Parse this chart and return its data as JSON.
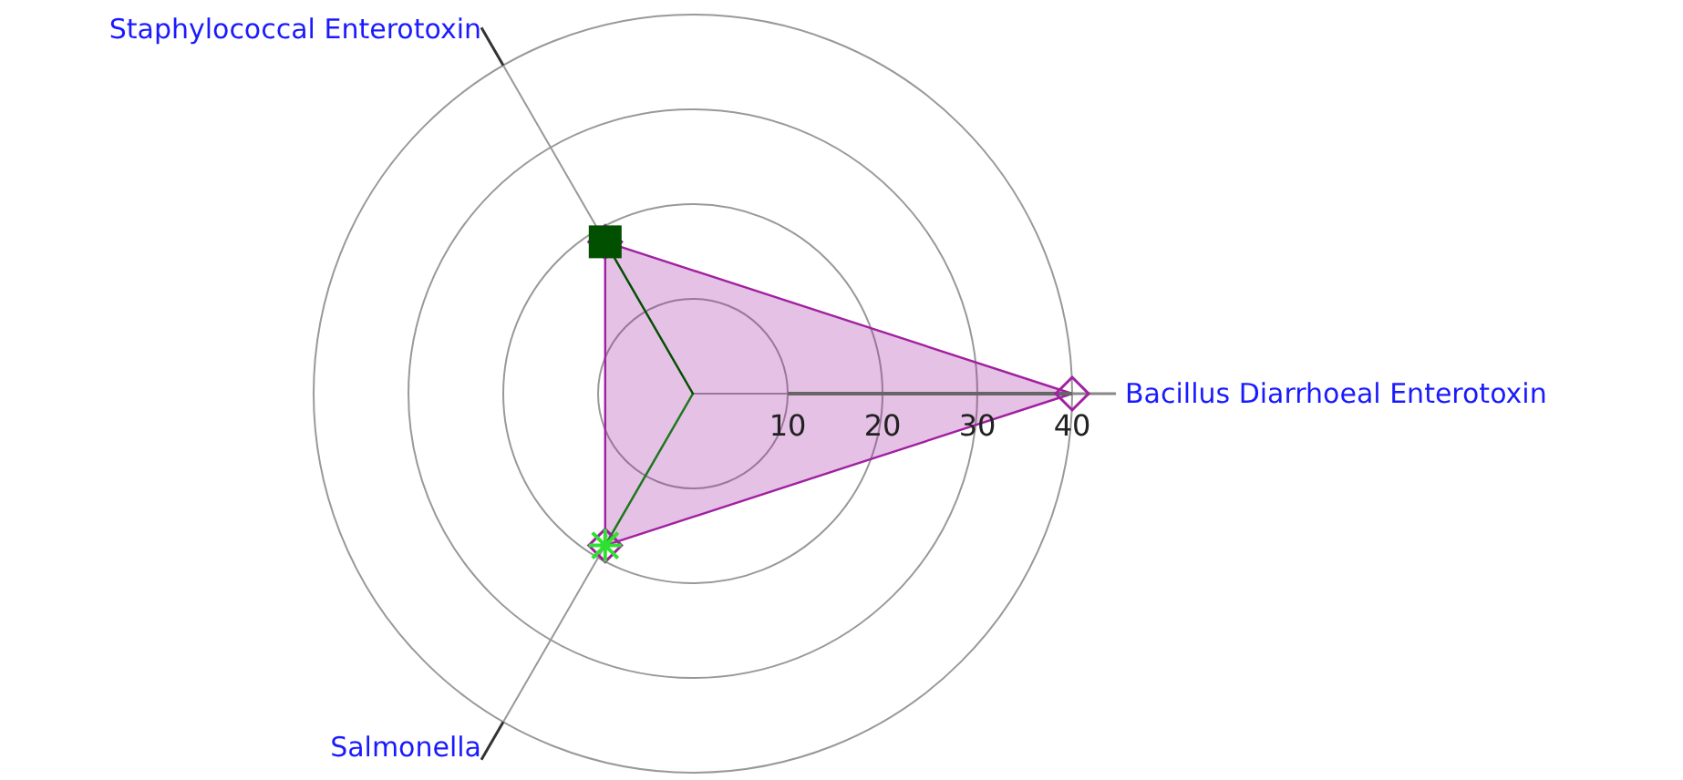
{
  "chart_data": {
    "type": "radar",
    "categories": [
      "Bacillus Diarrhoeal Enterotoxin",
      "Salmonella",
      "Staphylococcal Enterotoxin"
    ],
    "series": [
      {
        "color": "#a020a0",
        "values": [
          40,
          18.5,
          18.5
        ],
        "marker": "diamond"
      },
      {
        "color": "#1a7a1a",
        "values": [
          0,
          18.5,
          0
        ],
        "marker": "star"
      },
      {
        "color": "#005000",
        "values": [
          0,
          0,
          18.5
        ],
        "marker": "square"
      }
    ],
    "ylim": [
      0,
      40
    ],
    "yticks": [
      10,
      20,
      30,
      40
    ],
    "grid": true
  }
}
